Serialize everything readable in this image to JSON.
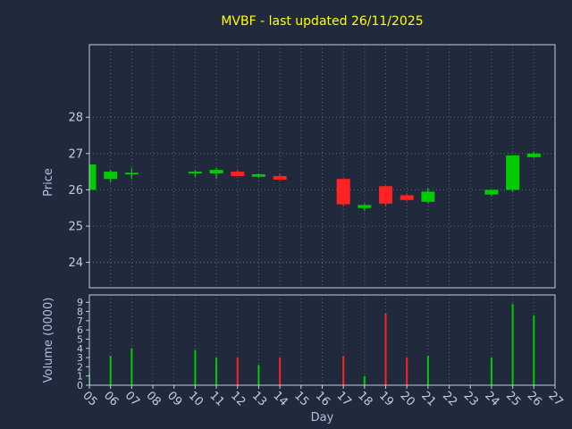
{
  "title": "MVBF - last updated 26/11/2025",
  "chart_data": {
    "type": "candlestick",
    "title": "MVBF - last updated 26/11/2025",
    "xlabel": "Day",
    "price_axis": {
      "label": "Price",
      "ticks": [
        24,
        25,
        26,
        27,
        28
      ],
      "ylim": [
        23.3,
        30.0
      ]
    },
    "volume_axis": {
      "label": "Volume (0000)",
      "ticks": [
        0,
        1,
        2,
        3,
        4,
        5,
        6,
        7,
        8,
        9
      ],
      "ylim": [
        0,
        9.8
      ]
    },
    "x_axis": {
      "ticks": [
        "05",
        "06",
        "07",
        "08",
        "09",
        "10",
        "11",
        "12",
        "13",
        "14",
        "15",
        "16",
        "17",
        "18",
        "19",
        "20",
        "21",
        "22",
        "23",
        "24",
        "25",
        "26",
        "27"
      ],
      "xlim": [
        5,
        27
      ]
    },
    "candles": [
      {
        "day": 5,
        "open": 26.0,
        "high": 26.7,
        "low": 25.95,
        "close": 26.7,
        "volume": 1.2
      },
      {
        "day": 6,
        "open": 26.3,
        "high": 26.55,
        "low": 26.2,
        "close": 26.5,
        "volume": 3.2
      },
      {
        "day": 7,
        "open": 26.45,
        "high": 26.6,
        "low": 26.3,
        "close": 26.47,
        "volume": 4.0
      },
      {
        "day": 10,
        "open": 26.45,
        "high": 26.55,
        "low": 26.35,
        "close": 26.5,
        "volume": 3.8
      },
      {
        "day": 11,
        "open": 26.45,
        "high": 26.6,
        "low": 26.3,
        "close": 26.55,
        "volume": 3.0
      },
      {
        "day": 12,
        "open": 26.5,
        "high": 26.55,
        "low": 26.38,
        "close": 26.38,
        "volume": 3.0
      },
      {
        "day": 13,
        "open": 26.36,
        "high": 26.45,
        "low": 26.32,
        "close": 26.43,
        "volume": 2.2
      },
      {
        "day": 14,
        "open": 26.38,
        "high": 26.45,
        "low": 26.27,
        "close": 26.28,
        "volume": 3.0
      },
      {
        "day": 17,
        "open": 26.3,
        "high": 26.32,
        "low": 25.55,
        "close": 25.6,
        "volume": 3.2
      },
      {
        "day": 18,
        "open": 25.5,
        "high": 25.62,
        "low": 25.42,
        "close": 25.58,
        "volume": 1.0
      },
      {
        "day": 19,
        "open": 26.1,
        "high": 26.12,
        "low": 25.55,
        "close": 25.62,
        "volume": 7.8
      },
      {
        "day": 20,
        "open": 25.85,
        "high": 25.9,
        "low": 25.68,
        "close": 25.72,
        "volume": 3.0
      },
      {
        "day": 21,
        "open": 25.67,
        "high": 26.05,
        "low": 25.62,
        "close": 25.95,
        "volume": 3.2
      },
      {
        "day": 24,
        "open": 25.87,
        "high": 26.0,
        "low": 25.82,
        "close": 26.0,
        "volume": 3.0
      },
      {
        "day": 25,
        "open": 26.0,
        "high": 26.95,
        "low": 25.95,
        "close": 26.95,
        "volume": 8.8
      },
      {
        "day": 26,
        "open": 26.9,
        "high": 27.05,
        "low": 26.88,
        "close": 27.0,
        "volume": 7.6
      }
    ],
    "colors": {
      "background": "#202a3c",
      "up": "#00cc00",
      "down": "#ff2222",
      "title": "#ffff00",
      "grid": "#6b7490",
      "frame": "#c5cbe3",
      "tick_text": "#c5cbe3",
      "axis_label": "#b4bedd"
    }
  }
}
